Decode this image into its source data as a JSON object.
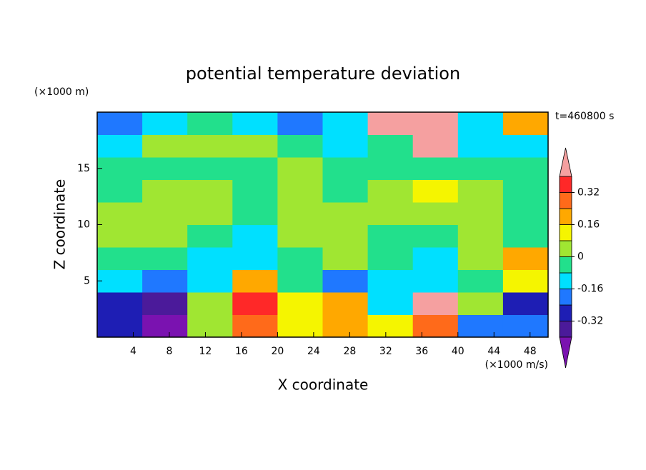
{
  "chart_data": {
    "type": "contour",
    "title": "potential temperature deviation",
    "xlabel": "X coordinate",
    "ylabel": "Z coordinate",
    "xunit": "(×1000 m/s)",
    "yunit": "(×1000 m)",
    "annotation": "t=460800 s",
    "xlim": [
      0,
      50
    ],
    "ylim": [
      0,
      20
    ],
    "xticks": [
      4,
      8,
      12,
      16,
      20,
      24,
      28,
      32,
      36,
      40,
      44,
      48
    ],
    "yticks": [
      5,
      10,
      15
    ],
    "x": [
      2.5,
      7.5,
      12.5,
      17.5,
      22.5,
      27.5,
      32.5,
      37.5,
      42.5,
      47.5
    ],
    "y": [
      1,
      3,
      5,
      7,
      9,
      11,
      13,
      15,
      17,
      19
    ],
    "z": [
      [
        -0.28,
        -0.45,
        0.04,
        0.28,
        0.12,
        0.2,
        0.12,
        0.28,
        -0.2,
        -0.2
      ],
      [
        -0.28,
        -0.36,
        0.04,
        0.36,
        0.12,
        0.2,
        -0.12,
        0.45,
        0.04,
        -0.28
      ],
      [
        -0.12,
        -0.2,
        -0.12,
        0.2,
        -0.04,
        -0.2,
        -0.12,
        -0.12,
        -0.04,
        0.12
      ],
      [
        -0.04,
        -0.04,
        -0.12,
        -0.12,
        -0.04,
        0.04,
        -0.04,
        -0.12,
        0.04,
        0.2
      ],
      [
        0.04,
        0.04,
        -0.04,
        -0.12,
        0.04,
        0.04,
        -0.04,
        -0.04,
        0.04,
        -0.04
      ],
      [
        0.04,
        0.04,
        0.04,
        -0.04,
        0.04,
        0.04,
        0.04,
        0.04,
        0.04,
        -0.04
      ],
      [
        -0.04,
        0.04,
        0.04,
        -0.04,
        0.04,
        -0.04,
        0.04,
        0.12,
        0.04,
        -0.04
      ],
      [
        -0.04,
        -0.04,
        -0.04,
        -0.04,
        0.04,
        -0.04,
        -0.04,
        -0.04,
        -0.04,
        -0.04
      ],
      [
        -0.12,
        0.04,
        0.04,
        0.04,
        -0.04,
        -0.12,
        -0.04,
        0.45,
        -0.12,
        -0.12
      ],
      [
        -0.2,
        -0.12,
        -0.04,
        -0.12,
        -0.2,
        -0.12,
        0.45,
        0.45,
        -0.12,
        0.2
      ]
    ],
    "levels": [
      -0.4,
      -0.32,
      -0.24,
      -0.16,
      -0.08,
      0,
      0.08,
      0.16,
      0.24,
      0.32,
      0.4
    ],
    "colors": [
      "#7a12b0",
      "#4b1a9a",
      "#1e1eb4",
      "#1f78ff",
      "#00e0ff",
      "#22e08c",
      "#a0e632",
      "#f5f500",
      "#ffa800",
      "#ff6a1a",
      "#ff2828",
      "#f5a0a0"
    ],
    "colorbar_ticks": [
      -0.32,
      -0.16,
      0,
      0.16,
      0.32
    ]
  }
}
